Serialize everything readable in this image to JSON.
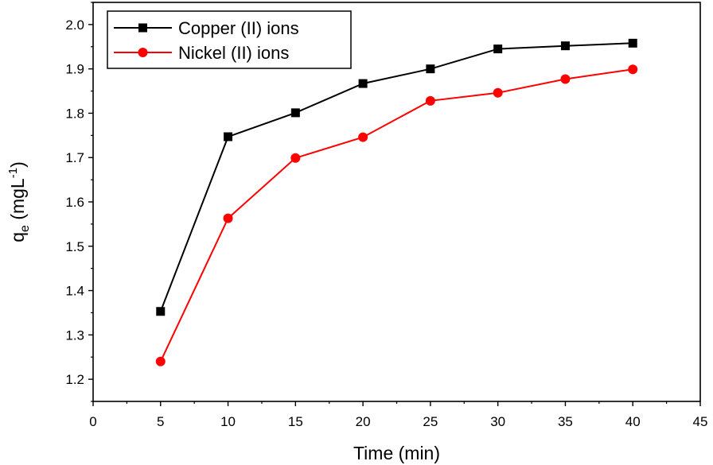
{
  "chart_data": {
    "type": "line",
    "title": "",
    "xlabel": "Time (min)",
    "ylabel": {
      "base": "q",
      "sub": "e",
      "unit": " (mgL",
      "sup": "-1",
      "close": ")"
    },
    "xlim": [
      0,
      45
    ],
    "ylim": [
      1.15,
      2.05
    ],
    "xticks": [
      0,
      5,
      10,
      15,
      20,
      25,
      30,
      35,
      40,
      45
    ],
    "yticks": [
      1.2,
      1.3,
      1.4,
      1.5,
      1.6,
      1.7,
      1.8,
      1.9,
      2.0
    ],
    "ytick_labels": [
      "1.2",
      "1.3",
      "1.4",
      "1.5",
      "1.6",
      "1.7",
      "1.8",
      "1.9",
      "2.0"
    ],
    "grid": false,
    "legend_position": "top-left",
    "x": [
      5,
      10,
      15,
      20,
      25,
      30,
      35,
      40
    ],
    "series": [
      {
        "name": "Copper (II) ions",
        "color": "#000000",
        "marker": "square",
        "values": [
          1.353,
          1.747,
          1.801,
          1.867,
          1.9,
          1.945,
          1.952,
          1.958
        ]
      },
      {
        "name": "Nickel (II) ions",
        "color": "#ff0000",
        "marker": "circle",
        "values": [
          1.24,
          1.563,
          1.699,
          1.746,
          1.828,
          1.846,
          1.877,
          1.899
        ]
      }
    ]
  }
}
